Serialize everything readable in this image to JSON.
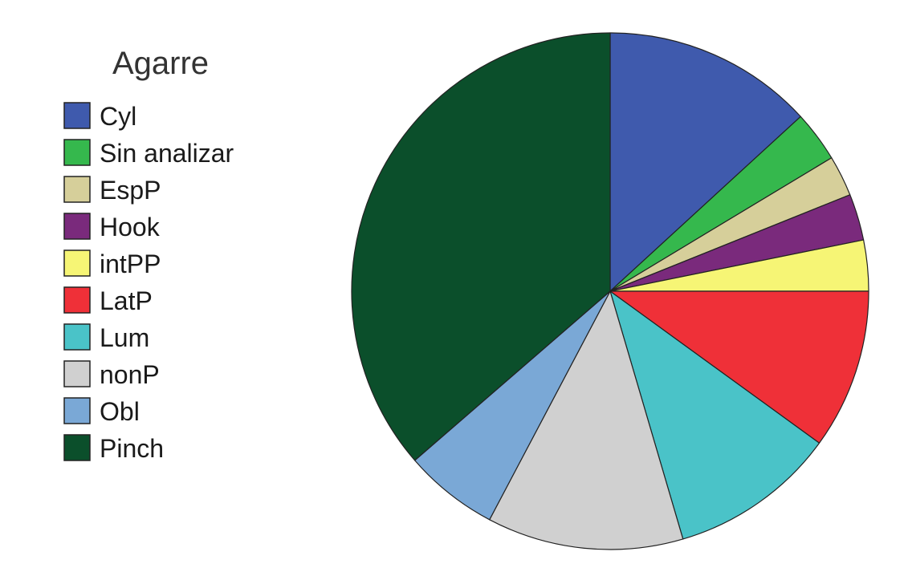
{
  "chart_data": {
    "type": "pie",
    "legend_title": "Agarre",
    "legend_position": "left",
    "start": "12 o'clock",
    "direction": "clockwise",
    "unit": "percent (estimated)",
    "slices": [
      {
        "label": "Cyl",
        "value": 14.5,
        "color": "#3f5aad"
      },
      {
        "label": "Sin analizar",
        "value": 3.5,
        "color": "#35b84d"
      },
      {
        "label": "EspP",
        "value": 2.8,
        "color": "#d6cf9a"
      },
      {
        "label": "Hook",
        "value": 3.2,
        "color": "#7a2a7c"
      },
      {
        "label": "intPP",
        "value": 3.5,
        "color": "#f6f575"
      },
      {
        "label": "LatP",
        "value": 11.0,
        "color": "#ef3038"
      },
      {
        "label": "Lum",
        "value": 11.5,
        "color": "#4ac3c8"
      },
      {
        "label": "nonP",
        "value": 13.5,
        "color": "#d0d0d0"
      },
      {
        "label": "Obl",
        "value": 6.5,
        "color": "#7aa8d6"
      },
      {
        "label": "Pinch",
        "value": 40.0,
        "color": "#0b4f2b"
      }
    ]
  }
}
